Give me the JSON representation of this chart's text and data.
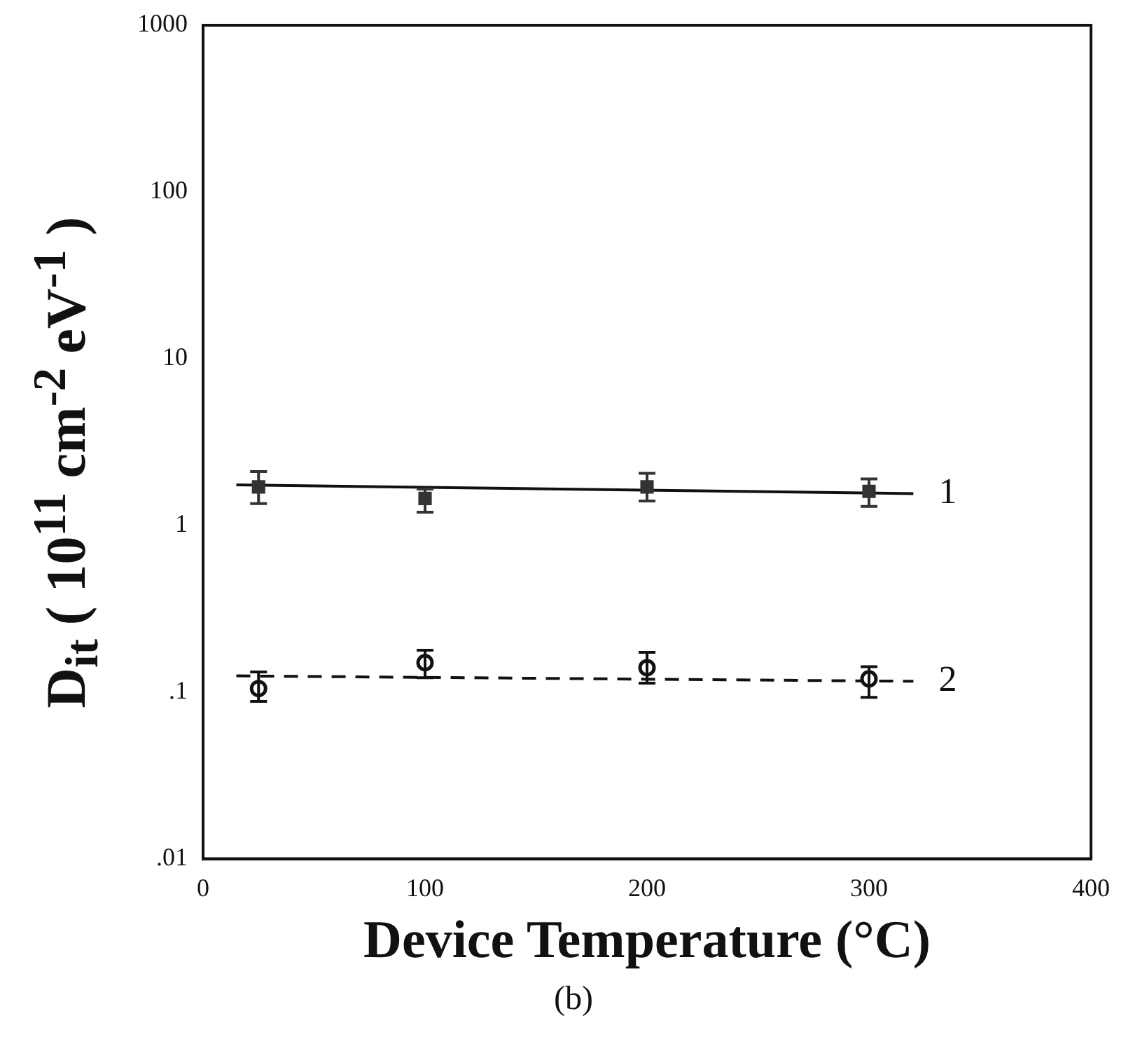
{
  "chart_data": {
    "type": "scatter",
    "xlabel": "Device Temperature (°C)",
    "ylabel": "D$_{it}$ ( 10$^{11}$ cm$^{-2}$ eV$^{-1}$ )",
    "log": "y",
    "grid": false,
    "legend": false,
    "xlim": [
      0,
      400
    ],
    "xticks": [
      0,
      100,
      200,
      300,
      400
    ],
    "ylim": [
      0.01,
      1000
    ],
    "yticks": [
      {
        "value": 0.01,
        "label": ".01"
      },
      {
        "value": 0.1,
        "label": ".1"
      },
      1,
      10,
      100,
      1000
    ],
    "series": [
      {
        "marker": "square",
        "color": "#333333",
        "x": [
          25,
          100,
          200,
          300
        ],
        "values": [
          1.7,
          1.45,
          1.7,
          1.6
        ],
        "errors": [
          [
            1.35,
            2.1
          ],
          [
            1.2,
            1.65
          ],
          [
            1.4,
            2.05
          ],
          [
            1.3,
            1.9
          ]
        ]
      },
      {
        "type": "line",
        "marker": "none",
        "line_style": "solid",
        "color": "#111111",
        "x": [
          15,
          320
        ],
        "values": [
          1.75,
          1.55
        ]
      },
      {
        "marker": "circle",
        "color": "#111111",
        "x": [
          25,
          100,
          200,
          300
        ],
        "values": [
          0.105,
          0.15,
          0.14,
          0.12
        ],
        "errors": [
          [
            0.088,
            0.132
          ],
          [
            0.122,
            0.178
          ],
          [
            0.113,
            0.173
          ],
          [
            0.093,
            0.142
          ]
        ]
      },
      {
        "type": "line",
        "marker": "none",
        "line_style": "dashed",
        "color": "#111111",
        "x": [
          15,
          320
        ],
        "values": [
          0.125,
          0.116
        ]
      }
    ],
    "annotations": [
      {
        "text": "1",
        "x": 320,
        "y": 1.55
      },
      {
        "text": "2",
        "x": 320,
        "y": 0.116
      },
      "(b)"
    ]
  }
}
